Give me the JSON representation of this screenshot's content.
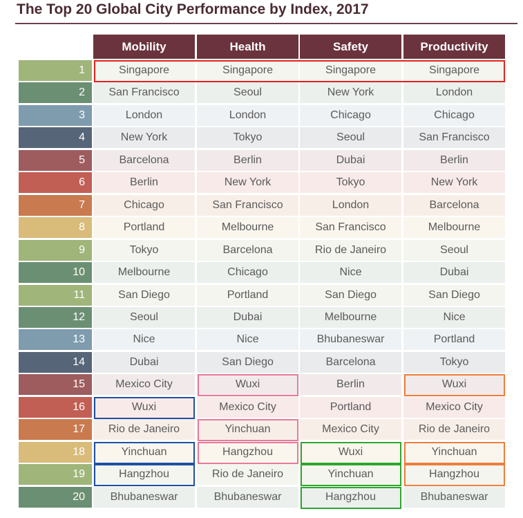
{
  "title": "The Top 20 Global City Performance by Index, 2017",
  "colors": {
    "header_bg": "#6b333d",
    "rank_palette": [
      "#9fb57a",
      "#6b8f73",
      "#7f9cae",
      "#566577",
      "#9e5c5e",
      "#c25f55",
      "#c97a4e",
      "#d9bb7a"
    ],
    "highlight": {
      "red": "#e2231a",
      "blue": "#1f4fa3",
      "pink": "#e8799b",
      "orange": "#ee7d3b",
      "green": "#2ea62e"
    }
  },
  "chart_data": {
    "type": "table",
    "columns": [
      "Mobility",
      "Health",
      "Safety",
      "Productivity"
    ],
    "ranks": [
      "1",
      "2",
      "3",
      "4",
      "5",
      "6",
      "7",
      "8",
      "9",
      "10",
      "11",
      "12",
      "13",
      "14",
      "15",
      "16",
      "17",
      "18",
      "19",
      "20"
    ],
    "rows": [
      [
        "Singapore",
        "Singapore",
        "Singapore",
        "Singapore"
      ],
      [
        "San Francisco",
        "Seoul",
        "New York",
        "London"
      ],
      [
        "London",
        "London",
        "Chicago",
        "Chicago"
      ],
      [
        "New York",
        "Tokyo",
        "Seoul",
        "San Francisco"
      ],
      [
        "Barcelona",
        "Berlin",
        "Dubai",
        "Berlin"
      ],
      [
        "Berlin",
        "New York",
        "Tokyo",
        "New York"
      ],
      [
        "Chicago",
        "San Francisco",
        "London",
        "Barcelona"
      ],
      [
        "Portland",
        "Melbourne",
        "San Francisco",
        "Melbourne"
      ],
      [
        "Tokyo",
        "Barcelona",
        "Rio de Janeiro",
        "Seoul"
      ],
      [
        "Melbourne",
        "Chicago",
        "Nice",
        "Dubai"
      ],
      [
        "San Diego",
        "Portland",
        "San Diego",
        "San Diego"
      ],
      [
        "Seoul",
        "Dubai",
        "Melbourne",
        "Nice"
      ],
      [
        "Nice",
        "Nice",
        "Bhubaneswar",
        "Portland"
      ],
      [
        "Dubai",
        "San Diego",
        "Barcelona",
        "Tokyo"
      ],
      [
        "Mexico City",
        "Wuxi",
        "Berlin",
        "Wuxi"
      ],
      [
        "Wuxi",
        "Mexico City",
        "Portland",
        "Mexico City"
      ],
      [
        "Rio de Janeiro",
        "Yinchuan",
        "Mexico City",
        "Rio de Janeiro"
      ],
      [
        "Yinchuan",
        "Hangzhou",
        "Wuxi",
        "Yinchuan"
      ],
      [
        "Hangzhou",
        "Rio de Janeiro",
        "Yinchuan",
        "Hangzhou"
      ],
      [
        "Bhubaneswar",
        "Bhubaneswar",
        "Hangzhou",
        "Bhubaneswar"
      ]
    ],
    "highlights": [
      {
        "row": 1,
        "col_start": 1,
        "col_end": 4,
        "color": "red"
      },
      {
        "row": 16,
        "col_start": 1,
        "col_end": 1,
        "color": "blue"
      },
      {
        "row": 18,
        "col_start": 1,
        "col_end": 1,
        "color": "blue"
      },
      {
        "row": 19,
        "col_start": 1,
        "col_end": 1,
        "color": "blue"
      },
      {
        "row": 15,
        "col_start": 2,
        "col_end": 2,
        "color": "pink"
      },
      {
        "row": 17,
        "col_start": 2,
        "col_end": 2,
        "color": "pink"
      },
      {
        "row": 18,
        "col_start": 2,
        "col_end": 2,
        "color": "pink"
      },
      {
        "row": 18,
        "col_start": 3,
        "col_end": 3,
        "color": "green"
      },
      {
        "row": 19,
        "col_start": 3,
        "col_end": 3,
        "color": "green"
      },
      {
        "row": 20,
        "col_start": 3,
        "col_end": 3,
        "color": "green"
      },
      {
        "row": 15,
        "col_start": 4,
        "col_end": 4,
        "color": "orange"
      },
      {
        "row": 18,
        "col_start": 4,
        "col_end": 4,
        "color": "orange"
      },
      {
        "row": 19,
        "col_start": 4,
        "col_end": 4,
        "color": "orange"
      }
    ]
  }
}
